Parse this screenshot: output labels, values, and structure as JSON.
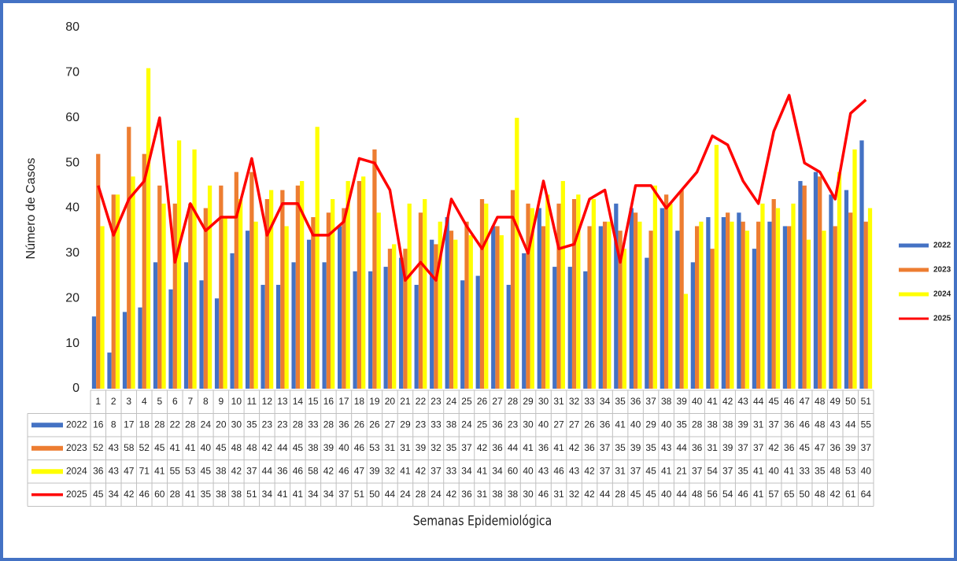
{
  "chart_data": {
    "type": "bar-line",
    "y_label": "Número de Casos",
    "x_label": "Semanas Epidemiológica",
    "categories": [
      "1",
      "2",
      "3",
      "4",
      "5",
      "6",
      "7",
      "8",
      "9",
      "10",
      "11",
      "12",
      "13",
      "14",
      "15",
      "16",
      "17",
      "18",
      "19",
      "20",
      "21",
      "22",
      "23",
      "24",
      "25",
      "26",
      "27",
      "28",
      "29",
      "30",
      "31",
      "32",
      "33",
      "34",
      "35",
      "36",
      "37",
      "38",
      "39",
      "40",
      "41",
      "42",
      "43",
      "44",
      "45",
      "46",
      "47",
      "48",
      "49",
      "50",
      "51"
    ],
    "series": [
      {
        "name": "2022",
        "type": "bar",
        "color": "#4472c4",
        "values": [
          16,
          8,
          17,
          18,
          28,
          22,
          28,
          24,
          20,
          30,
          35,
          23,
          23,
          28,
          33,
          28,
          36,
          26,
          26,
          27,
          29,
          23,
          33,
          38,
          24,
          25,
          36,
          23,
          30,
          40,
          27,
          27,
          26,
          36,
          41,
          40,
          29,
          40,
          35,
          28,
          38,
          38,
          39,
          31,
          37,
          36,
          46,
          48,
          43,
          44,
          55
        ]
      },
      {
        "name": "2023",
        "type": "bar",
        "color": "#ed7d31",
        "values": [
          52,
          43,
          58,
          52,
          45,
          41,
          41,
          40,
          45,
          48,
          48,
          42,
          44,
          45,
          38,
          39,
          40,
          46,
          53,
          31,
          31,
          39,
          32,
          35,
          37,
          42,
          36,
          44,
          41,
          36,
          41,
          42,
          36,
          37,
          35,
          39,
          35,
          43,
          44,
          36,
          31,
          39,
          37,
          37,
          42,
          36,
          45,
          47,
          36,
          39,
          37
        ]
      },
      {
        "name": "2024",
        "type": "bar",
        "color": "#ffff00",
        "values": [
          36,
          43,
          47,
          71,
          41,
          55,
          53,
          45,
          38,
          42,
          37,
          44,
          36,
          46,
          58,
          42,
          46,
          47,
          39,
          32,
          41,
          42,
          37,
          33,
          34,
          41,
          34,
          60,
          40,
          43,
          46,
          43,
          42,
          37,
          31,
          37,
          45,
          41,
          21,
          37,
          54,
          37,
          35,
          41,
          40,
          41,
          33,
          35,
          48,
          53,
          40
        ]
      },
      {
        "name": "2025",
        "type": "line",
        "color": "#ff0000",
        "values": [
          45,
          34,
          42,
          46,
          60,
          28,
          41,
          35,
          38,
          38,
          51,
          34,
          41,
          41,
          34,
          34,
          37,
          51,
          50,
          44,
          24,
          28,
          24,
          42,
          36,
          31,
          38,
          38,
          30,
          46,
          31,
          32,
          42,
          44,
          28,
          45,
          45,
          40,
          44,
          48,
          56,
          54,
          46,
          41,
          57,
          65,
          50,
          48,
          42,
          61,
          64
        ]
      }
    ],
    "ylim": [
      0,
      80
    ],
    "yticks": [
      0,
      10,
      20,
      30,
      40,
      50,
      60,
      70,
      80
    ],
    "grid": false,
    "legend": "right"
  }
}
